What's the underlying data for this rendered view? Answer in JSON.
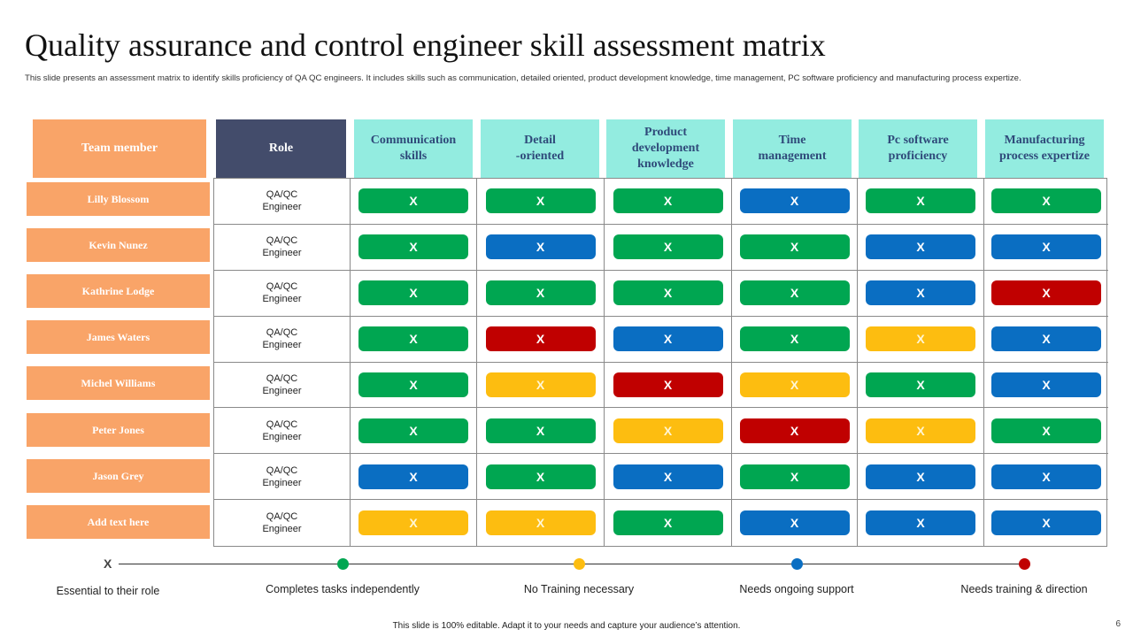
{
  "title": "Quality assurance and control engineer skill assessment matrix",
  "description": "This slide presents an assessment matrix to identify skills proficiency of QA QC engineers. It includes skills such as communication, detailed oriented, product development knowledge, time management,  PC software proficiency and manufacturing process expertize.",
  "headers": {
    "team": "Team member",
    "role": "Role",
    "skills": [
      "Communication\nskills",
      "Detail\n-oriented",
      "Product\ndevelopment\nknowledge",
      "Time\nmanagement",
      "Pc software\nproficiency",
      "Manufacturing\nprocess expertize"
    ]
  },
  "colors": {
    "green": "#00a651",
    "blue": "#0a6ec2",
    "yellow": "#fdbd10",
    "red": "#c00000"
  },
  "mark": "X",
  "rows": [
    {
      "member": "Lilly Blossom",
      "role": "QA/QC\nEngineer",
      "ratings": [
        "green",
        "green",
        "green",
        "blue",
        "green",
        "green"
      ]
    },
    {
      "member": "Kevin  Nunez",
      "role": "QA/QC\nEngineer",
      "ratings": [
        "green",
        "blue",
        "green",
        "green",
        "blue",
        "blue"
      ]
    },
    {
      "member": "Kathrine  Lodge",
      "role": "QA/QC\nEngineer",
      "ratings": [
        "green",
        "green",
        "green",
        "green",
        "blue",
        "red"
      ]
    },
    {
      "member": "James Waters",
      "role": "QA/QC\nEngineer",
      "ratings": [
        "green",
        "red",
        "blue",
        "green",
        "yellow",
        "blue"
      ]
    },
    {
      "member": "Michel Williams",
      "role": "QA/QC\nEngineer",
      "ratings": [
        "green",
        "yellow",
        "red",
        "yellow",
        "green",
        "blue"
      ]
    },
    {
      "member": "Peter Jones",
      "role": "QA/QC\nEngineer",
      "ratings": [
        "green",
        "green",
        "yellow",
        "red",
        "yellow",
        "green"
      ]
    },
    {
      "member": "Jason Grey",
      "role": "QA/QC\nEngineer",
      "ratings": [
        "blue",
        "green",
        "blue",
        "green",
        "blue",
        "blue"
      ]
    },
    {
      "member": "Add  text here",
      "role": "QA/QC\nEngineer",
      "ratings": [
        "yellow",
        "yellow",
        "green",
        "blue",
        "blue",
        "blue"
      ]
    }
  ],
  "legend": {
    "marker": "X",
    "items": [
      {
        "label": "Essential to their role",
        "color": ""
      },
      {
        "label": "Completes tasks independently",
        "color": "green"
      },
      {
        "label": "No Training necessary",
        "color": "yellow"
      },
      {
        "label": "Needs ongoing support",
        "color": "blue"
      },
      {
        "label": "Needs training & direction",
        "color": "red"
      }
    ]
  },
  "footer": "This slide is 100% editable. Adapt it to your needs and capture your audience’s attention.",
  "page_number": "6"
}
